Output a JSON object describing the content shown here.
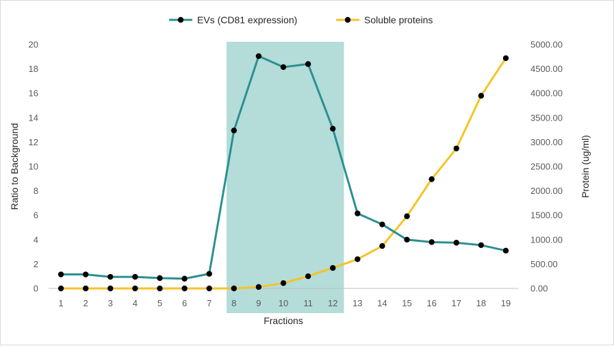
{
  "chart_data": {
    "type": "line",
    "title": "",
    "xlabel": "Fractions",
    "ylabel_left": "Ratio to Background",
    "ylabel_right": "Protein  (ug/ml)",
    "categories": [
      "1",
      "2",
      "3",
      "4",
      "5",
      "6",
      "7",
      "8",
      "9",
      "10",
      "11",
      "12",
      "13",
      "14",
      "15",
      "16",
      "17",
      "18",
      "19"
    ],
    "y_left_range": [
      0,
      20
    ],
    "y_left_ticks": [
      "0",
      "2",
      "4",
      "6",
      "8",
      "10",
      "12",
      "14",
      "16",
      "18",
      "20"
    ],
    "y_right_range": [
      0,
      5000
    ],
    "y_right_ticks": [
      "0.00",
      "500.00",
      "1000.00",
      "1500.00",
      "2000.00",
      "2500.00",
      "3000.00",
      "3500.00",
      "4000.00",
      "4500.00",
      "5000.00"
    ],
    "highlight_band": {
      "from_category": "8",
      "to_category": "12",
      "color": "#b4dcd9"
    },
    "series": [
      {
        "name": "EVs (CD81 expression)",
        "axis": "left",
        "color": "#2a9090",
        "marker_color": "#000000",
        "values": [
          1.15,
          1.15,
          0.95,
          0.95,
          0.85,
          0.8,
          1.2,
          12.95,
          19.05,
          18.15,
          18.4,
          13.1,
          6.15,
          5.25,
          4.0,
          3.8,
          3.75,
          3.55,
          3.1
        ]
      },
      {
        "name": "Soluble proteins",
        "axis": "right",
        "color": "#f7c325",
        "marker_color": "#000000",
        "values": [
          0,
          0,
          0,
          0,
          0,
          0,
          0,
          0,
          30,
          110,
          250,
          420,
          600,
          870,
          1480,
          2240,
          2870,
          3950,
          4720
        ]
      }
    ],
    "legend_position": "top-center",
    "grid": false
  }
}
